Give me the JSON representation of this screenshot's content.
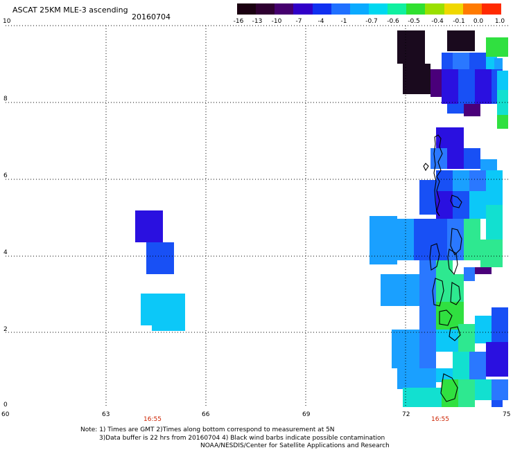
{
  "header": {
    "title": "ASCAT 25KM MLE-3 ascending",
    "date": "20160704"
  },
  "colorbar": {
    "labels": [
      "-16",
      "-13",
      "-10",
      "-7",
      "-4",
      "-1",
      "-0.7",
      "-0.6",
      "-0.5",
      "-0.4",
      "-0.1",
      "0.0",
      "1.0"
    ],
    "colors": [
      "#1a0010",
      "#2e0030",
      "#45006e",
      "#3000c8",
      "#1030f0",
      "#2070ff",
      "#0aaaff",
      "#00d8f0",
      "#10f0a0",
      "#30e030",
      "#9ae000",
      "#f0d800",
      "#ff7a00",
      "#ff2a00"
    ]
  },
  "axes": {
    "x_ticks": [
      "60",
      "63",
      "66",
      "69",
      "72",
      "75"
    ],
    "y_ticks": [
      "0",
      "2",
      "4",
      "6",
      "8",
      "10"
    ],
    "time_labels": [
      "16:55",
      "16:55"
    ]
  },
  "notes": {
    "line1": "Note: 1) Times are GMT 2)Times along bottom correspond to measurement at 5N",
    "line2": "3)Data buffer is 22 hrs from 20160704 4) Black wind barbs indicate possible contamination",
    "line3": "NOAA/NESDIS/Center for Satellite Applications and Research"
  }
}
